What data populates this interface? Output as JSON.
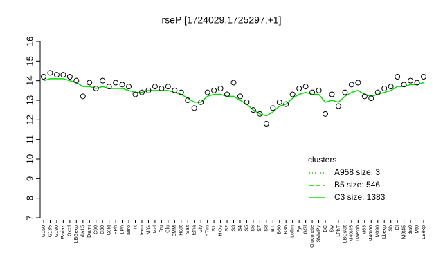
{
  "chart_data": {
    "type": "line",
    "title": "rseP [1724029,1725297,+1]",
    "categories": [
      "G150",
      "G135",
      "G180",
      "Pariaz",
      "Oxctl",
      "LBGexp",
      "dia15",
      "Diami",
      "C90",
      "C30",
      "Cold",
      "HPh",
      "LPh",
      "aero",
      "nit",
      "ferm",
      "M/G",
      "Mal",
      "Fru",
      "Glu",
      "BMM",
      "Heat",
      "Salt",
      "Etha",
      "Gly",
      "HTim",
      "S1",
      "HiOs",
      "S2",
      "S3",
      "S4",
      "S5",
      "S6",
      "S7",
      "S8",
      "BT",
      "B60",
      "B36",
      "LoTm",
      "Pyr",
      "GGl",
      "Gluconate",
      "SMMPy",
      "BC",
      "Sw",
      "LPhT",
      "LBGstat",
      "M40t45",
      "Uaerob",
      "M63",
      "M40t60",
      "M090",
      "Lbexp",
      "Sb",
      "Bl",
      "M0t45",
      "dia0",
      "Mt0",
      "LBexp"
    ],
    "points": [
      14.2,
      14.4,
      14.3,
      14.3,
      14.2,
      14.0,
      13.2,
      13.9,
      13.6,
      14.0,
      13.7,
      13.9,
      13.8,
      13.7,
      13.3,
      13.4,
      13.5,
      13.7,
      13.6,
      13.7,
      13.5,
      13.4,
      13.0,
      12.6,
      12.9,
      13.4,
      13.5,
      13.6,
      13.3,
      13.9,
      13.2,
      12.9,
      12.5,
      12.3,
      11.8,
      12.6,
      12.9,
      12.8,
      13.3,
      13.6,
      13.7,
      13.4,
      13.5,
      12.3,
      13.3,
      12.7,
      13.4,
      13.8,
      13.9,
      13.2,
      13.1,
      13.4,
      13.6,
      13.7,
      14.2,
      13.8,
      14.0,
      13.9,
      14.2
    ],
    "points_color": "#000000",
    "series": [
      {
        "name": "C3 size: 1383",
        "color": "#00dd00",
        "values": [
          14.0,
          14.1,
          14.1,
          14.1,
          14.0,
          13.9,
          13.7,
          13.7,
          13.6,
          13.7,
          13.6,
          13.6,
          13.6,
          13.5,
          13.4,
          13.4,
          13.5,
          13.5,
          13.5,
          13.5,
          13.4,
          13.3,
          13.1,
          12.9,
          12.9,
          13.2,
          13.3,
          13.3,
          13.2,
          13.2,
          13.0,
          12.8,
          12.5,
          12.3,
          12.2,
          12.4,
          12.7,
          12.8,
          13.1,
          13.3,
          13.4,
          13.3,
          13.3,
          12.9,
          13.0,
          12.9,
          13.2,
          13.4,
          13.5,
          13.3,
          13.2,
          13.3,
          13.4,
          13.5,
          13.7,
          13.7,
          13.8,
          13.8,
          13.9
        ]
      }
    ],
    "legend": {
      "title": "clusters",
      "entries": [
        {
          "name": "A958 size: 3",
          "color": "#00dd00",
          "dash": "1,3"
        },
        {
          "name": "B5 size: 546",
          "color": "#00dd00",
          "dash": "6,4"
        },
        {
          "name": "C3 size: 1383",
          "color": "#00dd00",
          "dash": "none"
        }
      ]
    },
    "ylim": [
      7,
      16
    ],
    "yticks": [
      7,
      8,
      9,
      10,
      11,
      12,
      13,
      14,
      15,
      16
    ]
  }
}
